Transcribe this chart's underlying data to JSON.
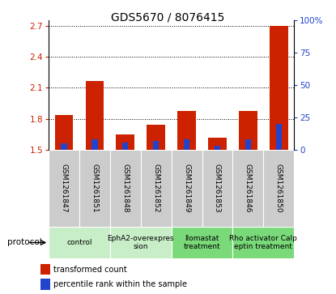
{
  "title": "GDS5670 / 8076415",
  "samples": [
    "GSM1261847",
    "GSM1261851",
    "GSM1261848",
    "GSM1261852",
    "GSM1261849",
    "GSM1261853",
    "GSM1261846",
    "GSM1261850"
  ],
  "transformed_count": [
    1.84,
    2.17,
    1.65,
    1.74,
    1.88,
    1.62,
    1.88,
    2.7
  ],
  "percentile_rank": [
    5,
    8,
    6,
    7,
    8,
    3,
    8,
    20
  ],
  "protocols": [
    {
      "label": "control",
      "samples": [
        0,
        1
      ],
      "color": "#c8eec8"
    },
    {
      "label": "EphA2-overexpres\nsion",
      "samples": [
        2,
        3
      ],
      "color": "#c8eec8"
    },
    {
      "label": "Ilomastat\ntreatment",
      "samples": [
        4,
        5
      ],
      "color": "#7ada7a"
    },
    {
      "label": "Rho activator Calp\neptin treatment",
      "samples": [
        6,
        7
      ],
      "color": "#7ada7a"
    }
  ],
  "ylim_left": [
    1.5,
    2.75
  ],
  "ylim_right": [
    0,
    100
  ],
  "yticks_left": [
    1.5,
    1.8,
    2.1,
    2.4,
    2.7
  ],
  "yticks_right": [
    0,
    25,
    50,
    75,
    100
  ],
  "ytick_labels_left": [
    "1.5",
    "1.8",
    "2.1",
    "2.4",
    "2.7"
  ],
  "ytick_labels_right": [
    "0",
    "25",
    "50",
    "75",
    "100%"
  ],
  "bar_color_red": "#cc2200",
  "bar_color_blue": "#2244cc",
  "bar_baseline": 1.5,
  "bg_plot": "#ffffff",
  "bg_sample_row": "#cccccc",
  "legend_red": "transformed count",
  "legend_blue": "percentile rank within the sample",
  "protocol_label": "protocol",
  "title_fontsize": 10,
  "tick_fontsize": 7.5,
  "sample_fontsize": 6.5
}
